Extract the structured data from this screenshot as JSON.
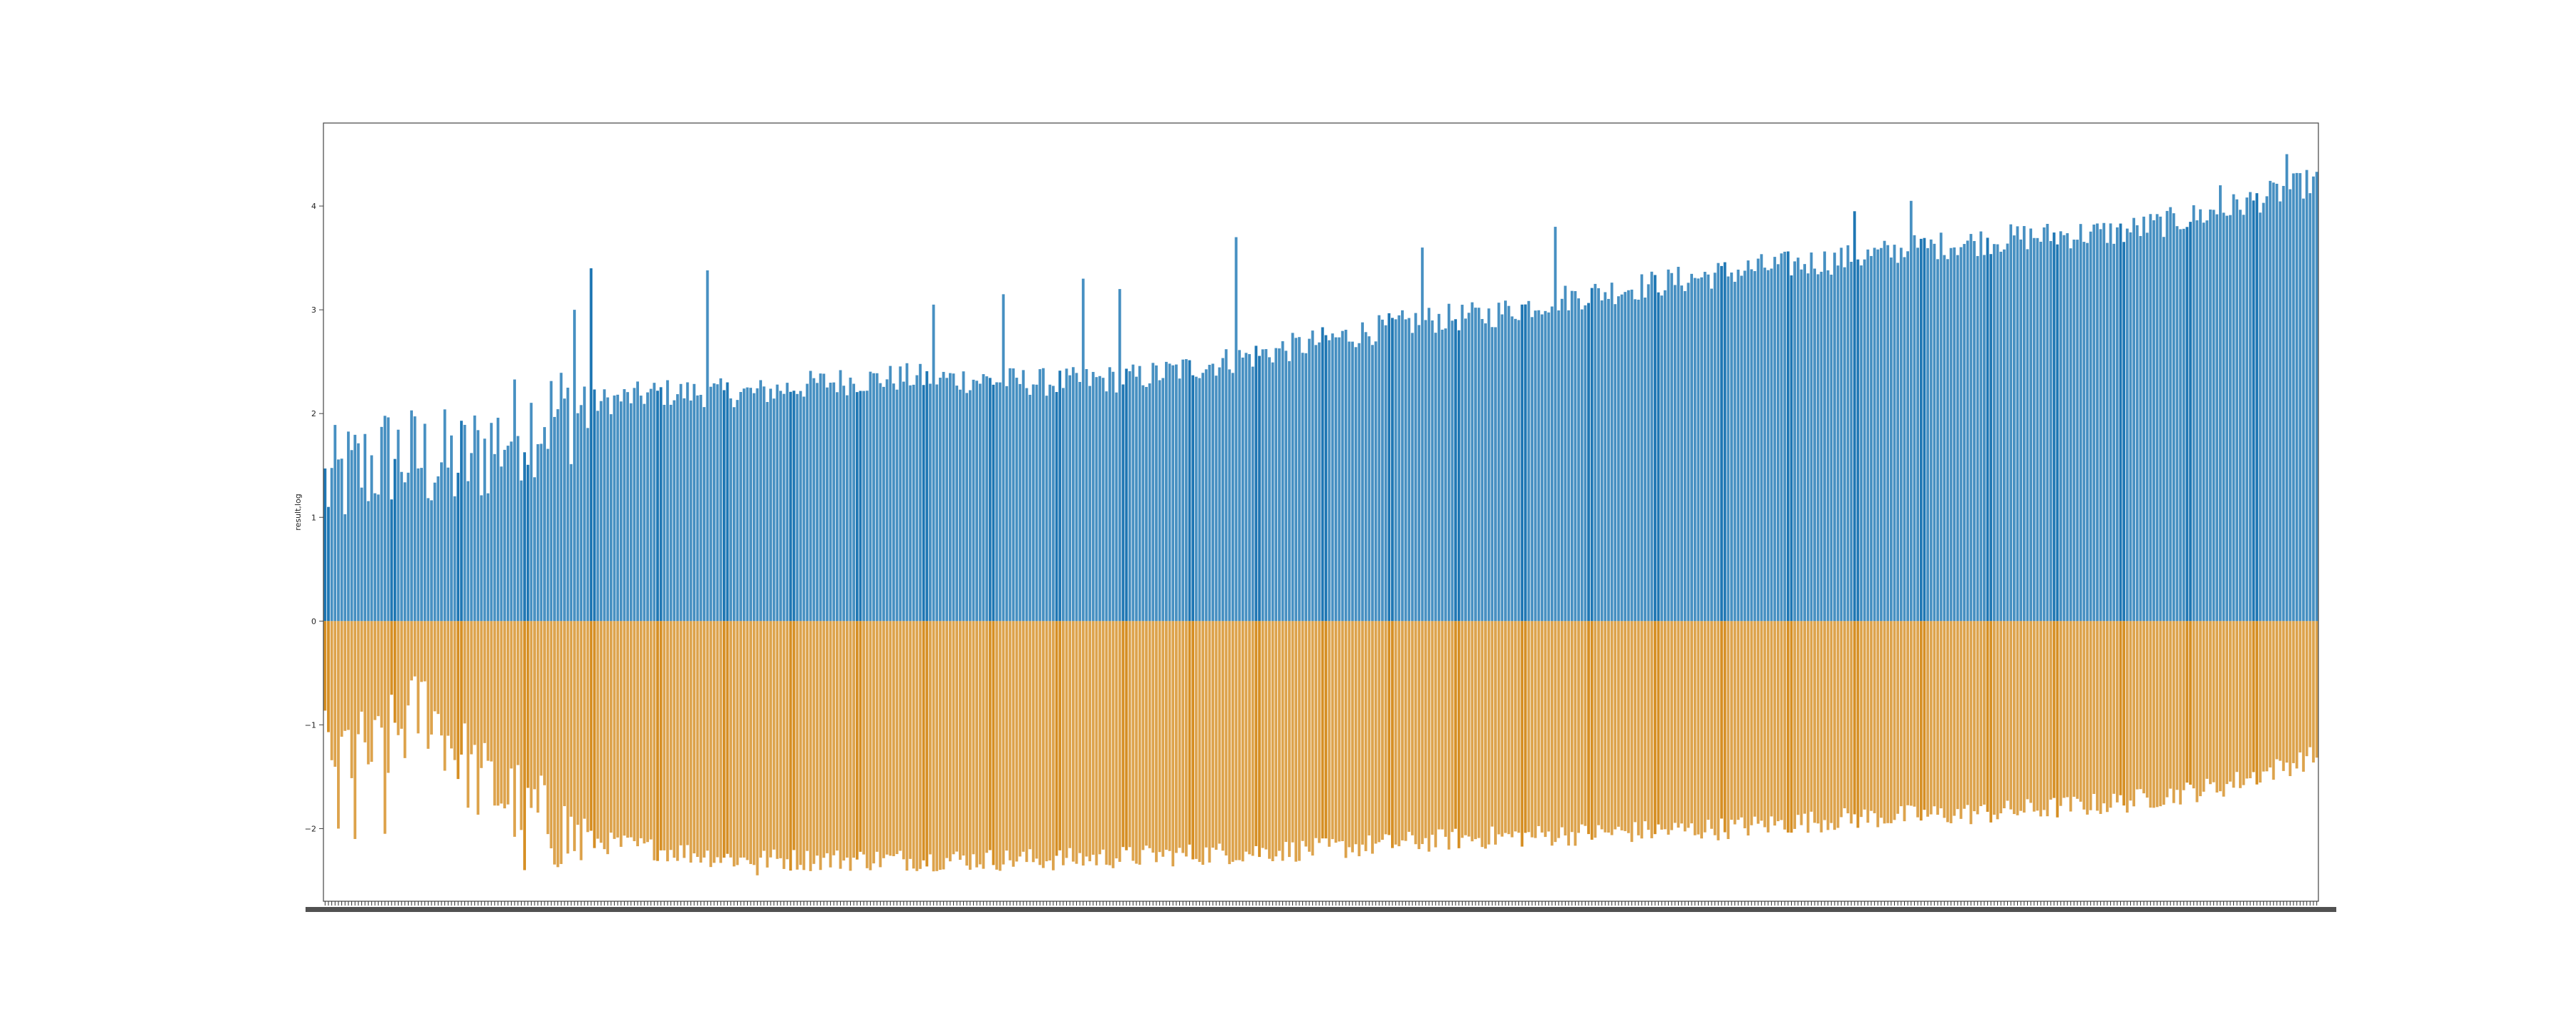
{
  "chart_data": {
    "type": "bar",
    "title": "",
    "xlabel": "",
    "ylabel": "result,log",
    "ylim": [
      -2.7,
      4.8
    ],
    "yticks": [
      -2,
      -1,
      0,
      1,
      2,
      3,
      4
    ],
    "grid": false,
    "legend": "none",
    "x_tick_labels": "dense, illegible",
    "category_count": 600,
    "series": [
      {
        "color": "#1f77b4",
        "anchors": [
          [
            0,
            1.3
          ],
          [
            20,
            1.6
          ],
          [
            40,
            1.5
          ],
          [
            60,
            1.9
          ],
          [
            80,
            2.1
          ],
          [
            100,
            2.2
          ],
          [
            130,
            2.2
          ],
          [
            150,
            2.3
          ],
          [
            175,
            2.35
          ],
          [
            220,
            2.3
          ],
          [
            245,
            2.35
          ],
          [
            270,
            2.5
          ],
          [
            300,
            2.7
          ],
          [
            330,
            2.9
          ],
          [
            350,
            2.95
          ],
          [
            370,
            3.1
          ],
          [
            400,
            3.25
          ],
          [
            430,
            3.4
          ],
          [
            460,
            3.5
          ],
          [
            480,
            3.6
          ],
          [
            510,
            3.7
          ],
          [
            540,
            3.75
          ],
          [
            570,
            3.95
          ],
          [
            599,
            4.25
          ]
        ],
        "spikes": [
          [
            75,
            3.0
          ],
          [
            80,
            3.4
          ],
          [
            115,
            3.38
          ],
          [
            183,
            3.05
          ],
          [
            204,
            3.15
          ],
          [
            228,
            3.3
          ],
          [
            239,
            3.2
          ],
          [
            274,
            3.7
          ],
          [
            330,
            3.6
          ],
          [
            370,
            3.8
          ],
          [
            460,
            3.95
          ],
          [
            477,
            4.05
          ],
          [
            570,
            4.2
          ],
          [
            590,
            4.5
          ]
        ]
      },
      {
        "color": "#d68f24",
        "anchors": [
          [
            0,
            -1.2
          ],
          [
            15,
            -1.3
          ],
          [
            30,
            -0.8
          ],
          [
            45,
            -1.5
          ],
          [
            60,
            -1.8
          ],
          [
            75,
            -2.1
          ],
          [
            100,
            -2.2
          ],
          [
            125,
            -2.3
          ],
          [
            150,
            -2.3
          ],
          [
            180,
            -2.3
          ],
          [
            220,
            -2.3
          ],
          [
            260,
            -2.25
          ],
          [
            300,
            -2.2
          ],
          [
            340,
            -2.1
          ],
          [
            380,
            -2.05
          ],
          [
            420,
            -2.0
          ],
          [
            460,
            -1.9
          ],
          [
            500,
            -1.85
          ],
          [
            540,
            -1.75
          ],
          [
            570,
            -1.6
          ],
          [
            599,
            -1.3
          ]
        ],
        "spikes": [
          [
            4,
            -2.0
          ],
          [
            9,
            -2.1
          ],
          [
            18,
            -2.05
          ],
          [
            60,
            -2.4
          ],
          [
            130,
            -2.45
          ]
        ]
      }
    ]
  }
}
